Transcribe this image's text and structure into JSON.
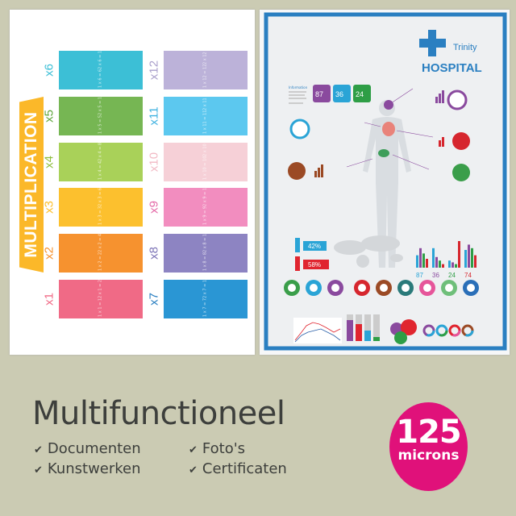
{
  "left_poster": {
    "title": "MULTIPLICATION",
    "tables": [
      {
        "n": 1,
        "label": "x1",
        "color": "#f06a86",
        "label_color": "#f06a86"
      },
      {
        "n": 2,
        "label": "x2",
        "color": "#f6922f",
        "label_color": "#f6922f"
      },
      {
        "n": 3,
        "label": "x3",
        "color": "#fcc02e",
        "label_color": "#fcc02e"
      },
      {
        "n": 4,
        "label": "x4",
        "color": "#a9d159",
        "label_color": "#8fbf3f"
      },
      {
        "n": 5,
        "label": "x5",
        "color": "#76b653",
        "label_color": "#5fa63e"
      },
      {
        "n": 6,
        "label": "x6",
        "color": "#3cbfd6",
        "label_color": "#3cbfd6"
      },
      {
        "n": 7,
        "label": "x7",
        "color": "#2a96d4",
        "label_color": "#2a7fc1"
      },
      {
        "n": 8,
        "label": "x8",
        "color": "#8d84c2",
        "label_color": "#7b72b6"
      },
      {
        "n": 9,
        "label": "x9",
        "color": "#f28dbf",
        "label_color": "#e46aa8"
      },
      {
        "n": 10,
        "label": "x10",
        "color": "#f6d0d7",
        "label_color": "#f2b9c4"
      },
      {
        "n": 11,
        "label": "x11",
        "color": "#5cc8ef",
        "label_color": "#3fb2e0"
      },
      {
        "n": 12,
        "label": "x12",
        "color": "#bcb2d9",
        "label_color": "#a99fcb"
      }
    ]
  },
  "right_poster": {
    "brand_top": "Trinity",
    "brand_main": "HOSPITAL",
    "accent": "#2a7fc1",
    "info_heading": "Information",
    "stats_top": [
      "87",
      "36",
      "24"
    ],
    "percent_sign": "%",
    "male_pct": "42%",
    "female_pct": "58%",
    "bar_stats": [
      "87",
      "36",
      "24",
      "74"
    ],
    "icons": [
      "stomach-icon",
      "lungs-icon",
      "brain-icon",
      "heart-icon",
      "liver-icon",
      "tooth-icon",
      "heart-love-icon",
      "sleep-bed-icon",
      "apple-icon"
    ]
  },
  "features": {
    "title": "Multifunctioneel",
    "items": [
      "Documenten",
      "Kunstwerken",
      "Foto's",
      "Certificaten"
    ],
    "check_icon": "checkmark-icon"
  },
  "badge": {
    "value": "125",
    "unit": "microns",
    "color": "#e0117a"
  }
}
